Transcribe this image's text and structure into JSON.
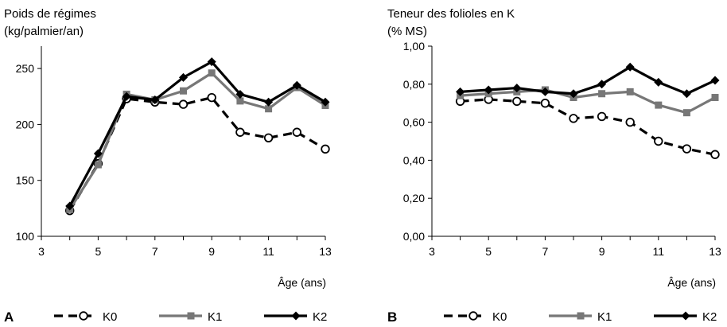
{
  "chart_data": [
    {
      "panel": "A",
      "type": "line",
      "title": "Poids de régimes",
      "subtitle": "(kg/palmier/an)",
      "xlabel": "Âge (ans)",
      "ylabel": "",
      "xlim": [
        3,
        13
      ],
      "ylim": [
        100,
        270
      ],
      "xticks": [
        "3",
        "5",
        "7",
        "9",
        "11",
        "13"
      ],
      "yticks": [
        "100",
        "150",
        "200",
        "250"
      ],
      "x": [
        4,
        5,
        6,
        7,
        8,
        9,
        10,
        11,
        12,
        13
      ],
      "series": [
        {
          "name": "K0",
          "values": [
            123,
            165,
            223,
            220,
            218,
            224,
            193,
            188,
            193,
            178
          ]
        },
        {
          "name": "K1",
          "values": [
            124,
            164,
            227,
            222,
            230,
            246,
            221,
            214,
            233,
            217
          ]
        },
        {
          "name": "K2",
          "values": [
            127,
            174,
            225,
            222,
            242,
            256,
            227,
            220,
            235,
            220
          ]
        }
      ]
    },
    {
      "panel": "B",
      "type": "line",
      "title": "Teneur des folioles en K",
      "subtitle": "(% MS)",
      "xlabel": "Âge (ans)",
      "ylabel": "",
      "xlim": [
        3,
        13
      ],
      "ylim": [
        0,
        1.0
      ],
      "xticks": [
        "3",
        "5",
        "7",
        "9",
        "11",
        "13"
      ],
      "yticks": [
        "0,00",
        "0,20",
        "0,40",
        "0,60",
        "0,80",
        "1,00"
      ],
      "x": [
        4,
        5,
        6,
        7,
        8,
        9,
        10,
        11,
        12,
        13
      ],
      "series": [
        {
          "name": "K0",
          "values": [
            0.71,
            0.72,
            0.71,
            0.7,
            0.62,
            0.63,
            0.6,
            0.5,
            0.46,
            0.43
          ]
        },
        {
          "name": "K1",
          "values": [
            0.74,
            0.75,
            0.76,
            0.77,
            0.73,
            0.75,
            0.76,
            0.69,
            0.65,
            0.73
          ]
        },
        {
          "name": "K2",
          "values": [
            0.76,
            0.77,
            0.78,
            0.76,
            0.75,
            0.8,
            0.89,
            0.81,
            0.75,
            0.82
          ]
        }
      ]
    }
  ],
  "series_style": {
    "K0": {
      "color": "#000000",
      "dash": true,
      "marker": "open-circle-icon"
    },
    "K1": {
      "color": "#777777",
      "dash": false,
      "marker": "square-icon"
    },
    "K2": {
      "color": "#000000",
      "dash": false,
      "marker": "diamond-icon"
    }
  }
}
